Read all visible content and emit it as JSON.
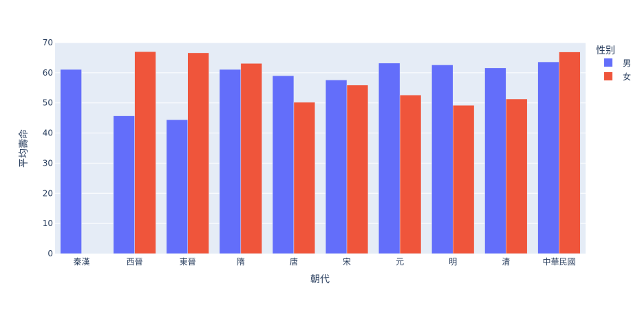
{
  "chart_data": {
    "type": "bar",
    "categories": [
      "秦漢",
      "西晉",
      "東晉",
      "隋",
      "唐",
      "宋",
      "元",
      "明",
      "清",
      "中華民國"
    ],
    "series": [
      {
        "name": "男",
        "values": [
          61.1,
          45.7,
          44.4,
          61.1,
          59.0,
          57.6,
          63.2,
          62.6,
          61.6,
          63.6
        ]
      },
      {
        "name": "女",
        "values": [
          null,
          67.0,
          66.6,
          63.1,
          50.2,
          55.9,
          52.6,
          49.2,
          51.3,
          66.9
        ]
      }
    ],
    "xlabel": "朝代",
    "ylabel": "平均壽命",
    "ylim": [
      0,
      70
    ],
    "yticks": [
      0,
      10,
      20,
      30,
      40,
      50,
      60,
      70
    ],
    "grid": true,
    "legend": {
      "title": "性别",
      "placement": "top-right"
    },
    "colors": {
      "男": "#636efa",
      "女": "#ef553b",
      "plot_bg": "#e5ecf6",
      "grid": "#ffffff",
      "text": "#2a3f5f"
    }
  }
}
